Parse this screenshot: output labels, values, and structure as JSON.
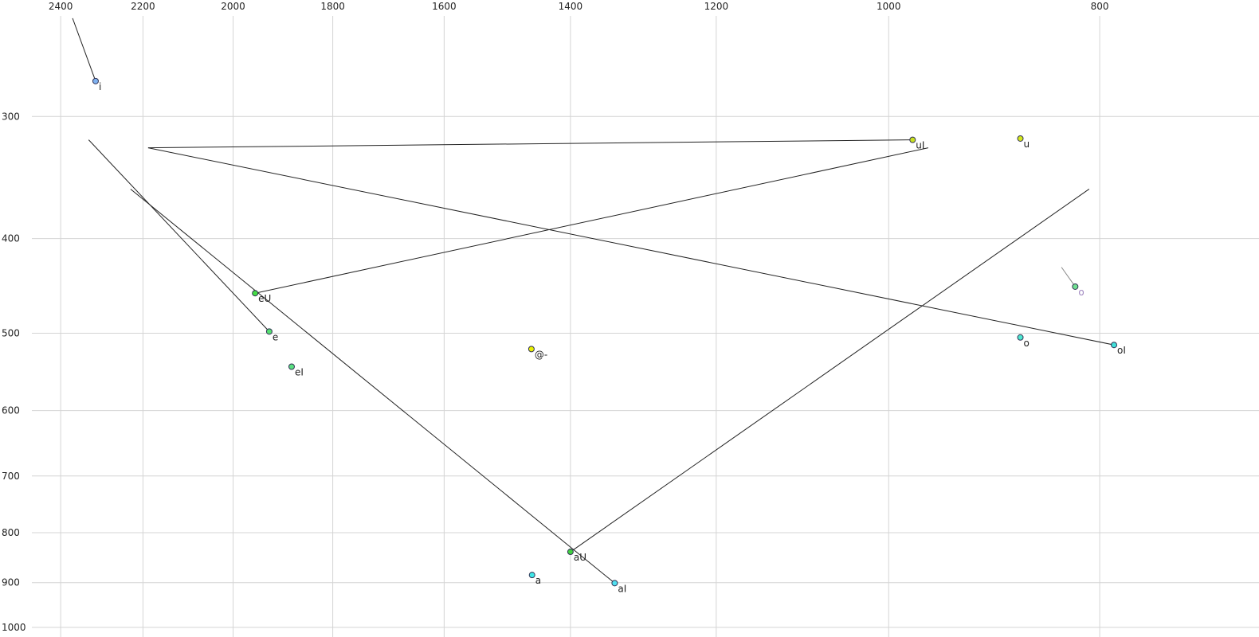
{
  "chart_data": {
    "type": "scatter",
    "x_log": true,
    "y_log": true,
    "x_reversed": true,
    "xlim": [
      2559,
      676
    ],
    "ylim": [
      228,
      1023
    ],
    "xticks": [
      2400,
      2200,
      2000,
      1800,
      1600,
      1400,
      1200,
      1000,
      800
    ],
    "yticks": [
      300,
      400,
      500,
      600,
      700,
      800,
      900,
      1000
    ],
    "grid": true,
    "trail_color": "#222222",
    "points": [
      {
        "label": "i",
        "x": 2313,
        "y": 276,
        "color": "#7fb2f0",
        "trail_x": 2370,
        "trail_y": 238
      },
      {
        "label": "uI",
        "x": 975,
        "y": 317,
        "color": "#c8e020",
        "trail_x": 2188,
        "trail_y": 323
      },
      {
        "label": "u",
        "x": 870,
        "y": 316,
        "color": "#d4e81c"
      },
      {
        "label": "eU",
        "x": 1954,
        "y": 455,
        "color": "#44dd44",
        "trail_x": 959,
        "trail_y": 323
      },
      {
        "label": "e",
        "x": 1925,
        "y": 498,
        "color": "#55e070",
        "trail_x": 2330,
        "trail_y": 317
      },
      {
        "label": "eI",
        "x": 1880,
        "y": 541,
        "color": "#5ae080"
      },
      {
        "label": "@-",
        "x": 1459,
        "y": 519,
        "color": "#e8f000"
      },
      {
        "label": "o",
        "x": 821,
        "y": 448,
        "color": "#70e090",
        "trail_x": 833,
        "trail_y": 428,
        "label_color": "#a088c0",
        "trail_color": "#888888"
      },
      {
        "label": "o",
        "x": 870,
        "y": 505,
        "color": "#4de8d0"
      },
      {
        "label": "oI",
        "x": 788,
        "y": 514,
        "color": "#40e0d8",
        "trail_x": 2188,
        "trail_y": 323
      },
      {
        "label": "aU",
        "x": 1400,
        "y": 837,
        "color": "#40d040",
        "trail_x": 809,
        "trail_y": 356
      },
      {
        "label": "a",
        "x": 1458,
        "y": 884,
        "color": "#40e8e8"
      },
      {
        "label": "aI",
        "x": 1336,
        "y": 901,
        "color": "#50e0f0",
        "trail_x": 2229,
        "trail_y": 356
      }
    ]
  }
}
